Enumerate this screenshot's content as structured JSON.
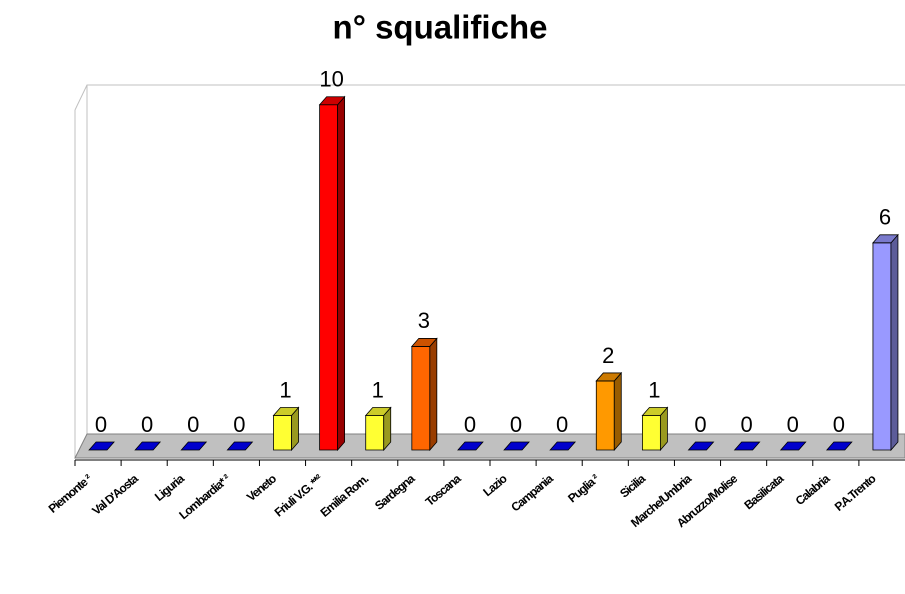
{
  "chart_data": {
    "type": "bar3d",
    "title": "n° squalifiche",
    "categories": [
      "Piemonte ²",
      "Val D'Aosta",
      "Liguria",
      "Lombardia* ²",
      "Veneto",
      "Friuli V.G. **²",
      "Emilia Rom.",
      "Sardegna",
      "Toscana",
      "Lazio",
      "Campania",
      "Puglia ²",
      "Sicilia",
      "Marche/Umbria",
      "Abruzzo/Molise",
      "Basilicata",
      "Calabria",
      "P.A.Trento"
    ],
    "values": [
      0,
      0,
      0,
      0,
      1,
      10,
      1,
      3,
      0,
      0,
      0,
      2,
      1,
      0,
      0,
      0,
      0,
      6
    ],
    "colors": [
      "#0000cc",
      "#0000cc",
      "#0000cc",
      "#0000cc",
      "#ffff33",
      "#ff0000",
      "#ffff33",
      "#ff6600",
      "#0000cc",
      "#0000cc",
      "#0000cc",
      "#ff9900",
      "#ffff33",
      "#0000cc",
      "#0000cc",
      "#0000cc",
      "#0000cc",
      "#9999ff"
    ],
    "ylim": [
      0,
      10.6
    ]
  }
}
